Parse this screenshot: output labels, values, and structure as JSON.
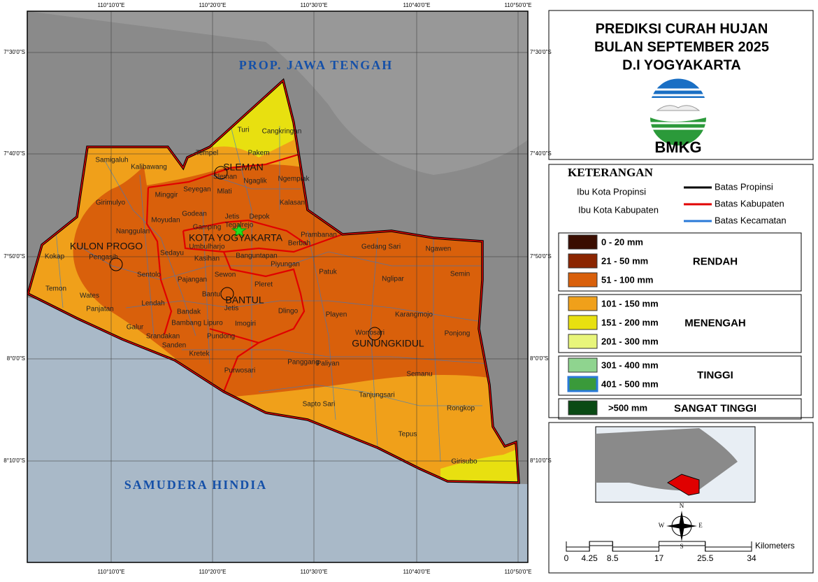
{
  "title": [
    "PREDIKSI CURAH HUJAN",
    "BULAN SEPTEMBER 2025",
    "D.I YOGYAKARTA"
  ],
  "logo": "BMKG",
  "legend": {
    "heading": "KETERANGAN",
    "symbols": [
      "Ibu Kota Propinsi",
      "Ibu Kota Kabupaten"
    ],
    "boundaries": [
      {
        "label": "Batas Propinsi",
        "color": "#000000"
      },
      {
        "label": "Batas Kabupaten",
        "color": "#e00000"
      },
      {
        "label": "Batas Kecamatan",
        "color": "#2a7ad8"
      }
    ],
    "groups": [
      {
        "name": "RENDAH",
        "items": [
          {
            "label": "0 - 20 mm",
            "color": "#3a0d00"
          },
          {
            "label": "21 - 50 mm",
            "color": "#8b2500"
          },
          {
            "label": "51 - 100 mm",
            "color": "#d9600b"
          }
        ]
      },
      {
        "name": "MENENGAH",
        "items": [
          {
            "label": "101 - 150 mm",
            "color": "#f0a01a"
          },
          {
            "label": "151 - 200 mm",
            "color": "#e8e010"
          },
          {
            "label": "201 - 300 mm",
            "color": "#e8f57a"
          }
        ]
      },
      {
        "name": "TINGGI",
        "items": [
          {
            "label": "301 - 400 mm",
            "color": "#8fd48f"
          },
          {
            "label": "401 - 500 mm",
            "color": "#3a9a3a"
          }
        ]
      },
      {
        "name": "SANGAT TINGGI",
        "items": [
          {
            "label": ">500 mm",
            "color": "#0a4a14"
          }
        ]
      }
    ]
  },
  "map": {
    "neighbors": [
      "PROP. JAWA TENGAH",
      "SAMUDERA HINDIA"
    ],
    "longitudes": [
      "110°10'0\"E",
      "110°20'0\"E",
      "110°30'0\"E",
      "110°40'0\"E",
      "110°50'0\"E"
    ],
    "latitudes": [
      "7°30'0\"S",
      "7°40'0\"S",
      "7°50'0\"S",
      "8°0'0\"S",
      "8°10'0\"S"
    ],
    "regencies": [
      "KULON PROGO",
      "SLEMAN",
      "KOTA YOGYAKARTA",
      "BANTUL",
      "GUNUNGKIDUL"
    ],
    "districts": [
      "Turi",
      "Cangkringan",
      "Tempel",
      "Pakem",
      "Sleman",
      "Ngaglik",
      "Ngemplak",
      "Mlati",
      "Seyegan",
      "Minggir",
      "Samigaluh",
      "Kalibawang",
      "Girimulyo",
      "Godean",
      "Moyudan",
      "Jetis",
      "Tegalrejo",
      "Depok",
      "Kalasan",
      "Gamping",
      "Nanggulan",
      "Prambanan",
      "Berbah",
      "Umbulharjo",
      "Banguntapan",
      "Sedayu",
      "Kasihan",
      "Pengasih",
      "Kokap",
      "Piyungan",
      "Patuk",
      "Gedang Sari",
      "Ngawen",
      "Sentolo",
      "Pajangan",
      "Sewon",
      "Pleret",
      "Nglipar",
      "Semin",
      "Temon",
      "Wates",
      "Lendah",
      "Bantul",
      "Panjatan",
      "Bandak",
      "Jetis",
      "Dlingo",
      "Playen",
      "Karangmojo",
      "Galur",
      "Bambang Lipuro",
      "Imogiri",
      "Wonosari",
      "Ponjong",
      "Srandakan",
      "Pundong",
      "Sanden",
      "Kretek",
      "Panggang",
      "Paliyan",
      "Semanu",
      "Purwosari",
      "Tanjungsari",
      "Sapto Sari",
      "Rongkop",
      "Tepus",
      "Girisubo"
    ]
  },
  "scale": {
    "unit": "Kilometers",
    "ticks": [
      0,
      4.25,
      8.5,
      17,
      25.5,
      34
    ]
  },
  "compass": [
    "N",
    "S",
    "E",
    "W"
  ]
}
